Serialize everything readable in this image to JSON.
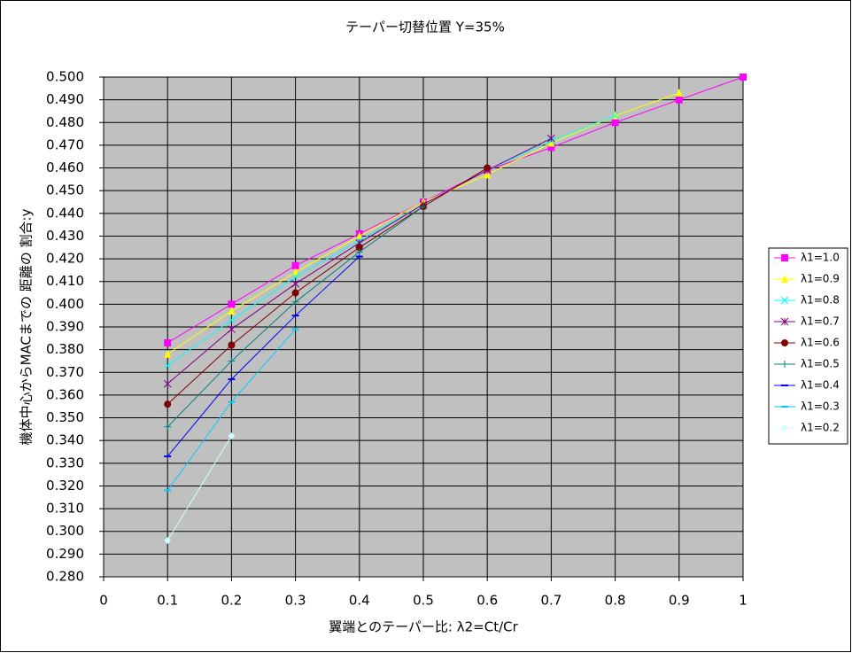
{
  "chart_data": {
    "type": "line",
    "title": "テーパー切替位置 Y=35%",
    "x_label": "翼端とのテーパー比: λ2=Ct/Cr",
    "y_label": "機体中心からMACまでの 距離の 割合:y",
    "xlim": [
      0,
      1
    ],
    "xticks": [
      0,
      0.1,
      0.2,
      0.3,
      0.4,
      0.5,
      0.6,
      0.7,
      0.8,
      0.9,
      1
    ],
    "ylim": [
      0.28,
      0.5
    ],
    "yticks": [
      {
        "value": 0.28,
        "label": "0.280"
      },
      {
        "value": 0.29,
        "label": "0.290"
      },
      {
        "value": 0.3,
        "label": "0.300"
      },
      {
        "value": 0.31,
        "label": "0.310"
      },
      {
        "value": 0.32,
        "label": "0.320"
      },
      {
        "value": 0.33,
        "label": "0.330"
      },
      {
        "value": 0.34,
        "label": "0.340"
      },
      {
        "value": 0.35,
        "label": "0.350"
      },
      {
        "value": 0.36,
        "label": "0.360"
      },
      {
        "value": 0.37,
        "label": "0.370"
      },
      {
        "value": 0.38,
        "label": "0.380"
      },
      {
        "value": 0.39,
        "label": "0.390"
      },
      {
        "value": 0.4,
        "label": "0.400"
      },
      {
        "value": 0.41,
        "label": "0.410"
      },
      {
        "value": 0.42,
        "label": "0.420"
      },
      {
        "value": 0.43,
        "label": "0.430"
      },
      {
        "value": 0.44,
        "label": "0.440"
      },
      {
        "value": 0.45,
        "label": "0.450"
      },
      {
        "value": 0.46,
        "label": "0.460"
      },
      {
        "value": 0.47,
        "label": "0.470"
      },
      {
        "value": 0.48,
        "label": "0.480"
      },
      {
        "value": 0.49,
        "label": "0.490"
      },
      {
        "value": 0.5,
        "label": "0.500"
      }
    ],
    "grid": true,
    "legend": "right",
    "plot_background": "#c0c0c0",
    "series": [
      {
        "name": "λ1=1.0",
        "color": "#ff00ff",
        "marker": "square",
        "x": [
          0.1,
          0.2,
          0.3,
          0.4,
          0.5,
          0.6,
          0.7,
          0.8,
          0.9,
          1.0
        ],
        "values": [
          0.383,
          0.4,
          0.417,
          0.431,
          0.445,
          0.459,
          0.469,
          0.48,
          0.49,
          0.5
        ]
      },
      {
        "name": "λ1=0.9",
        "color": "#ffff00",
        "marker": "triangle",
        "x": [
          0.1,
          0.2,
          0.3,
          0.4,
          0.5,
          0.6,
          0.7,
          0.8,
          0.9
        ],
        "values": [
          0.378,
          0.397,
          0.414,
          0.43,
          0.445,
          0.457,
          0.471,
          0.483,
          0.493
        ]
      },
      {
        "name": "λ1=0.8",
        "color": "#00ffff",
        "marker": "x",
        "x": [
          0.1,
          0.2,
          0.3,
          0.4,
          0.5,
          0.6,
          0.7,
          0.8
        ],
        "values": [
          0.373,
          0.393,
          0.412,
          0.428,
          0.444,
          0.459,
          0.472,
          0.483
        ]
      },
      {
        "name": "λ1=0.7",
        "color": "#800080",
        "marker": "star",
        "x": [
          0.1,
          0.2,
          0.3,
          0.4,
          0.5,
          0.6,
          0.7
        ],
        "values": [
          0.365,
          0.389,
          0.409,
          0.427,
          0.444,
          0.459,
          0.473
        ]
      },
      {
        "name": "λ1=0.6",
        "color": "#800000",
        "marker": "circle",
        "x": [
          0.1,
          0.2,
          0.3,
          0.4,
          0.5,
          0.6
        ],
        "values": [
          0.356,
          0.382,
          0.405,
          0.425,
          0.443,
          0.46
        ]
      },
      {
        "name": "λ1=0.5",
        "color": "#008080",
        "marker": "plus",
        "x": [
          0.1,
          0.2,
          0.3,
          0.4,
          0.5
        ],
        "values": [
          0.346,
          0.375,
          0.401,
          0.423,
          0.443
        ]
      },
      {
        "name": "λ1=0.4",
        "color": "#0000ff",
        "marker": "dash",
        "x": [
          0.1,
          0.2,
          0.3,
          0.4
        ],
        "values": [
          0.333,
          0.367,
          0.395,
          0.421
        ]
      },
      {
        "name": "λ1=0.3",
        "color": "#00ccff",
        "marker": "dash",
        "x": [
          0.1,
          0.2,
          0.3
        ],
        "values": [
          0.318,
          0.357,
          0.389
        ]
      },
      {
        "name": "λ1=0.2",
        "color": "#ccffff",
        "marker": "diamond",
        "x": [
          0.1,
          0.2
        ],
        "values": [
          0.296,
          0.342
        ]
      }
    ]
  }
}
